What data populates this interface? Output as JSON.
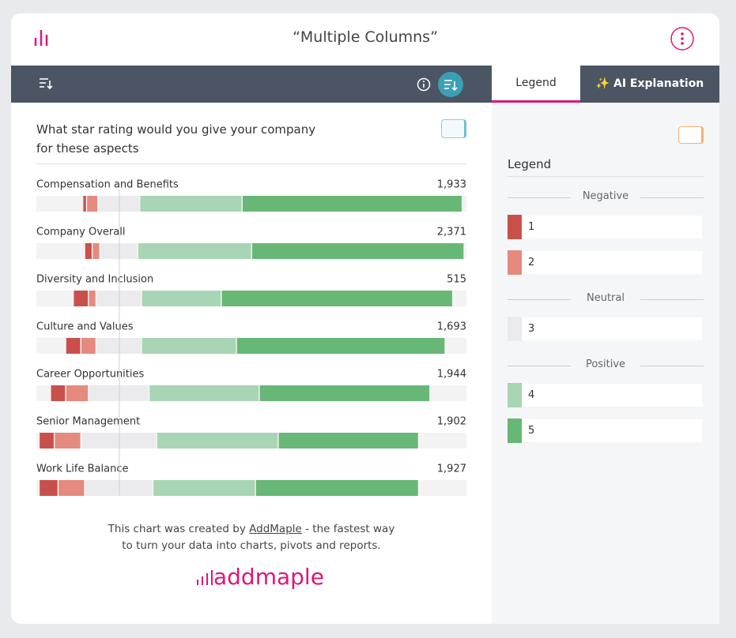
{
  "header": {
    "title": "“Multiple Columns”"
  },
  "tabs": [
    "Legend",
    "✨ AI Explanation"
  ],
  "chart_data": {
    "type": "diverging-bar",
    "title": "What star rating would you give your company for these aspects",
    "categories": [
      "Compensation and Benefits",
      "Company Overall",
      "Diversity and Inclusion",
      "Culture and Values",
      "Career Opportunities",
      "Senior Management",
      "Work Life Balance"
    ],
    "totals": [
      "1,933",
      "2,371",
      "515",
      "1,693",
      "1,944",
      "1,902",
      "1,927"
    ],
    "series": [
      {
        "name": "1",
        "group": "Negative",
        "color": "#c9504a",
        "values": [
          1,
          2,
          4,
          4,
          4,
          4,
          5
        ]
      },
      {
        "name": "2",
        "group": "Negative",
        "color": "#e48a7e",
        "values": [
          3,
          2,
          2,
          4,
          6,
          7,
          7
        ]
      },
      {
        "name": "3",
        "group": "Neutral",
        "color": "#ebebed",
        "values": [
          11,
          10,
          12,
          12,
          16,
          20,
          18
        ]
      },
      {
        "name": "4",
        "group": "Positive",
        "color": "#a8d5b3",
        "values": [
          27,
          30,
          21,
          25,
          29,
          32,
          27
        ]
      },
      {
        "name": "5",
        "group": "Positive",
        "color": "#67b777",
        "values": [
          58,
          56,
          61,
          55,
          45,
          37,
          43
        ]
      }
    ]
  },
  "legend": {
    "title": "Legend"
  },
  "footer": {
    "text_before": "This chart was created by",
    "link": "AddMaple",
    "text_after": "- the fastest way to turn your data into charts, pivots and reports.",
    "logo": "addmaple"
  }
}
